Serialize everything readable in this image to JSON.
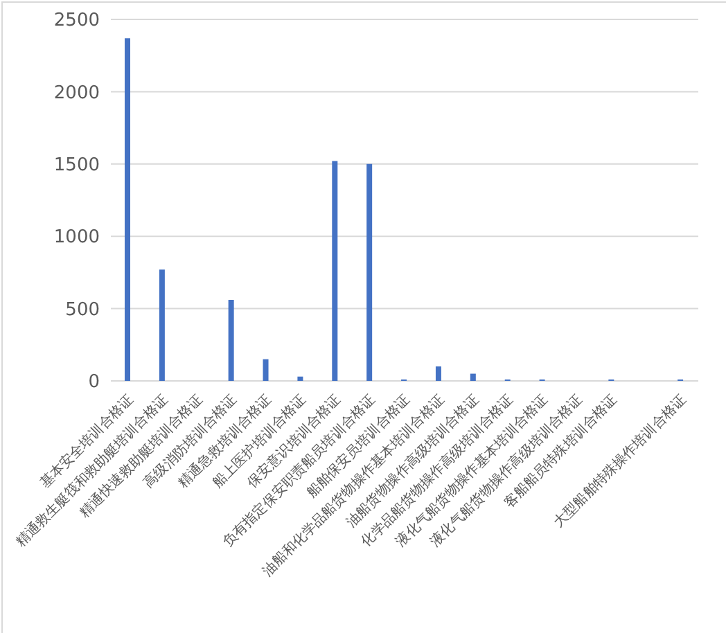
{
  "chart_data": {
    "type": "bar",
    "categories": [
      "基本安全培训合格证",
      "精通救生艇筏和救助艇培训合格证",
      "精通快速救助艇培训合格证",
      "高级消防培训合格证",
      "精通急救培训合格证",
      "船上医护培训合格证",
      "保安意识培训合格证",
      "负有指定保安职责船员培训合格证",
      "船舶保安员培训合格证",
      "油船和化学品船货物操作基本培训合格证",
      "油船货物操作高级培训合格证",
      "化学品船货物操作高级培训合格证",
      "液化气船货物操作基本培训合格证",
      "液化气船货物操作高级培训合格证",
      "客船船员特殊培训合格证",
      null,
      "大型船舶特殊操作培训合格证"
    ],
    "values": [
      2370,
      770,
      0,
      560,
      150,
      30,
      1520,
      1500,
      10,
      100,
      50,
      10,
      10,
      0,
      10,
      0,
      10
    ],
    "color": "#4472c4",
    "ylim": [
      0,
      2500
    ],
    "yticks": [
      0,
      500,
      1000,
      1500,
      2000,
      2500
    ],
    "grid": "y",
    "legend": false
  }
}
